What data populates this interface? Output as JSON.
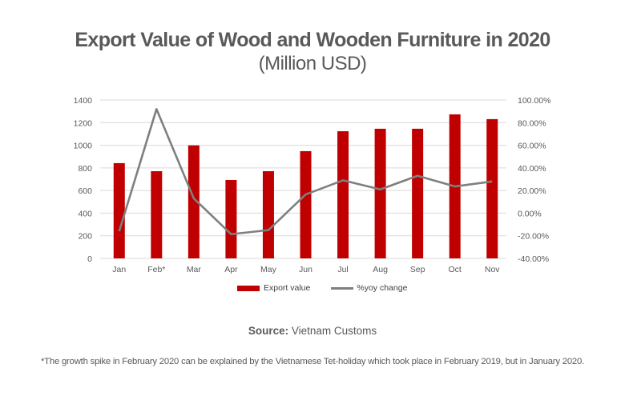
{
  "header": {
    "title": "Export Value of Wood and Wooden Furniture in 2020",
    "subtitle": "(Million USD)"
  },
  "legend": {
    "bar_label": "Export value",
    "line_label": "%yoy change"
  },
  "source": {
    "label": "Source:",
    "value": "Vietnam Customs"
  },
  "footnote": "*The growth spike in February 2020 can be explained by the Vietnamese Tet-holiday which took place in February 2019, but in January 2020.",
  "colors": {
    "bar": "#C00000",
    "line": "#7F7F7F",
    "grid": "#D9D9D9",
    "text": "#595959"
  },
  "chart_data": {
    "type": "bar",
    "title": "Export Value of Wood and Wooden Furniture in 2020",
    "subtitle": "(Million USD)",
    "xlabel": "",
    "ylabel": "",
    "categories": [
      "Jan",
      "Feb*",
      "Mar",
      "Apr",
      "May",
      "Jun",
      "Jul",
      "Aug",
      "Sep",
      "Oct",
      "Nov"
    ],
    "series": [
      {
        "name": "Export value",
        "type": "bar",
        "axis": "left",
        "values": [
          842,
          771,
          999,
          693,
          771,
          948,
          1124,
          1146,
          1146,
          1273,
          1231
        ]
      },
      {
        "name": "%yoy change",
        "type": "line",
        "axis": "right",
        "values": [
          -16,
          92,
          13,
          -18.6,
          -15,
          16.5,
          29,
          21,
          33,
          23.6,
          28
        ]
      }
    ],
    "ylim": [
      0,
      1400
    ],
    "y_ticks": [
      "0",
      "200",
      "400",
      "600",
      "800",
      "1000",
      "1200",
      "1400"
    ],
    "y2lim": [
      -40,
      100
    ],
    "y2_ticks": [
      "-40.00%",
      "-20.00%",
      "0.00%",
      "20.00%",
      "40.00%",
      "60.00%",
      "80.00%",
      "100.00%"
    ],
    "grid": true,
    "legend_position": "bottom",
    "source": "Source: Vietnam Customs"
  }
}
